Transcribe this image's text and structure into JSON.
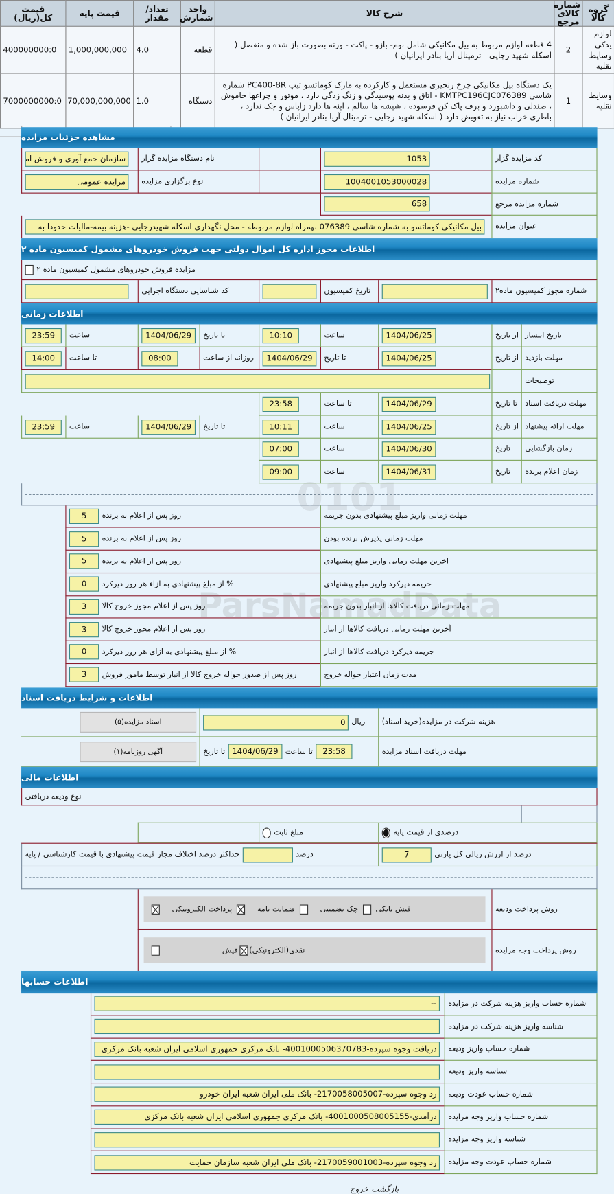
{
  "goods_table": {
    "headers": {
      "group": "گروه کالا",
      "ref_no": "شماره کالای مرجع",
      "desc": "شرح کالا",
      "unit": "واحد شمارش",
      "qty": "تعداد/مقدار",
      "base_price": "قیمت پایه",
      "total": "قیمت کل(ریال)"
    },
    "rows": [
      {
        "group": "لوازم یدکی وسایط نقلیه",
        "ref_no": "2",
        "desc": "4 قطعه لوازم مربوط به بیل مکانیکی شامل بوم- بازو - پاکت - وزنه بصورت باز شده و منفصل ( اسکله شهید رجایی - ترمینال آریا بنادر ایرانیان )",
        "unit": "قطعه",
        "qty": "4.0",
        "base_price": "1,000,000,000",
        "total": "400000000:0"
      },
      {
        "group": "وسایط نقلیه",
        "ref_no": "1",
        "desc": "یک دستگاه بیل مکانیکی چرخ زنجیری مستعمل و کارکرده به مارک کوماتسو تیپ PC400-8R شماره شاسی KMTPC196CJC076389 - اتاق و بدنه پوسیدگی و زنگ زدگی دارد ، موتور و چراغها خاموش ، صندلی و داشبورد و برف پاک کن فرسوده ، شیشه ها سالم ، اینه ها دارد زاپاس و جک ندارد ، باطری خراب نیاز به تعویض دارد ( اسکله شهید رجایی - ترمینال آریا بنادر ایرانیان )",
        "unit": "دستگاه",
        "qty": "1.0",
        "base_price": "70,000,000,000",
        "total": "7000000000:0"
      }
    ]
  },
  "details": {
    "title": "مشاهده جزئیات مزایده",
    "auctioneer_code_label": "کد مزایده گزار",
    "auctioneer_code": "1053",
    "org_name_label": "نام دستگاه مزایده گزار",
    "org_name": "سازمان جمع آوری و فروش اموال تملیکی",
    "auction_no_label": "شماره مزایده",
    "auction_no": "1004001053000028",
    "type_label": "نوع برگزاری مزایده",
    "type": "مزایده عمومی",
    "ref_no_label": "شماره مزایده مرجع",
    "ref_no": "658",
    "subject_label": "عنوان مزایده",
    "subject": "بیل مکانیکی کوماتسو به شماره شاسی 076389 بهمراه لوازم مربوطه - محل نگهداری اسکله شهیدرجایی -هزینه بیمه-مالیات حدودا به"
  },
  "permit": {
    "title": "اطلاعات مجوز اداره کل اموال دولتی جهت فروش خودروهای مشمول کمیسیون ماده ۲",
    "checkbox_label": "مزایده فروش خودروهای مشمول کمیسیون ماده ۲",
    "checked": false,
    "permit_no_label": "شماره مجوز کمیسیون ماده۲",
    "permit_no": "",
    "date_label": "تاریخ کمیسیون",
    "date": "",
    "exec_id_label": "کد شناسایی دستگاه اجرایی",
    "exec_id": ""
  },
  "timing": {
    "title": "اطلاعات زمانی",
    "publish": {
      "label": "تاریخ انتشار",
      "from_label": "از تاریخ",
      "from": "1404/06/25",
      "time1_label": "ساعت",
      "time1": "10:10",
      "to_label": "تا تاریخ",
      "to": "1404/06/29",
      "time2_label": "ساعت",
      "time2": "23:59"
    },
    "visit": {
      "label": "مهلت بازدید",
      "from_label": "از تاریخ",
      "from": "1404/06/25",
      "to_label": "تا تاریخ",
      "to": "1404/06/29",
      "daily_label": "روزانه از ساعت",
      "daily_from": "08:00",
      "until_label": "تا ساعت",
      "daily_to": "14:00"
    },
    "notes": {
      "label": "توضیحات",
      "value": ""
    },
    "docs": {
      "label": "مهلت دریافت اسناد",
      "to_label": "تا تاریخ",
      "to": "1404/06/29",
      "time_label": "تا ساعت",
      "time": "23:58"
    },
    "offer": {
      "label": "مهلت ارائه پیشنهاد",
      "from_label": "از تاریخ",
      "from": "1404/06/25",
      "time1_label": "ساعت",
      "time1": "10:11",
      "to_label": "تا تاریخ",
      "to": "1404/06/29",
      "time2_label": "ساعت",
      "time2": "23:59"
    },
    "opening": {
      "label": "زمان بازگشایی",
      "date_label": "تاریخ",
      "date": "1404/06/30",
      "time_label": "ساعت",
      "time": "07:00"
    },
    "winner": {
      "label": "زمان اعلام برنده",
      "date_label": "تاریخ",
      "date": "1404/06/31",
      "time_label": "ساعت",
      "time": "09:00"
    }
  },
  "deadlines": [
    {
      "label": "مهلت زمانی واریز مبلغ پیشنهادی بدون جریمه",
      "value": "5",
      "suffix": "روز پس از اعلام به برنده"
    },
    {
      "label": "مهلت زمانی پذیرش برنده بودن",
      "value": "5",
      "suffix": "روز پس از اعلام به برنده"
    },
    {
      "label": "اخرین مهلت زمانی واریز مبلغ پیشنهادی",
      "value": "5",
      "suffix": "روز پس از اعلام به برنده"
    },
    {
      "label": "جریمه دیرکرد واریز مبلغ پیشنهادی",
      "value": "0",
      "suffix": "% از مبلغ پیشنهادی به ازاء هر روز دیرکرد"
    },
    {
      "label": "مهلت زمانی دریافت کالاها از انبار بدون جریمه",
      "value": "3",
      "suffix": "روز پس از اعلام مجوز خروج کالا"
    },
    {
      "label": "آخرین مهلت زمانی دریافت کالاها از انبار",
      "value": "3",
      "suffix": "روز پس از اعلام مجوز خروج کالا"
    },
    {
      "label": "جریمه دیرکرد دریافت کالاها از انبار",
      "value": "0",
      "suffix": "% از مبلغ پیشنهادی به ازای هر روز دیرکرد"
    },
    {
      "label": "مدت زمان اعتبار حواله خروج",
      "value": "3",
      "suffix": "روز پس از صدور حواله خروج کالا از انبار توسط مامور فروش"
    }
  ],
  "documents": {
    "title": "اطلاعات و شرایط دریافت اسناد",
    "fee_label": "هزینه شرکت در مزایده(خرید اسناد)",
    "fee": "0",
    "fee_unit": "ریال",
    "docs_button": "اسناد مزایده(۵)",
    "deadline_label": "مهلت دریافت اسناد مزایده",
    "to_label": "تا تاریخ",
    "to": "1404/06/29",
    "time_label": "تا ساعت",
    "time": "23:58",
    "newspaper_button": "آگهی روزنامه(۱)"
  },
  "financial": {
    "title": "اطلاعات مالی",
    "deposit_type_label": "نوع ودیعه دریافتی",
    "radio_percent": "درصدی از قیمت پایه",
    "radio_fixed": "مبلغ ثابت",
    "selected": "percent",
    "percent_value": "7",
    "percent_suffix": "درصد از ارزش ریالی کل پارتی",
    "max_diff_label": "حداکثر درصد اختلاف مجاز قیمت پیشنهادی با قیمت کارشناسی / پایه",
    "max_diff": "",
    "max_diff_unit": "درصد",
    "deposit_method_label": "روش پرداخت ودیعه",
    "deposit_methods": [
      {
        "label": "پرداخت الکترونیکی",
        "checked": true
      },
      {
        "label": "ضمانت نامه",
        "checked": true
      },
      {
        "label": "چک تضمینی",
        "checked": false
      },
      {
        "label": "فیش بانکی",
        "checked": false
      }
    ],
    "payment_method_label": "روش پرداخت وجه مزایده",
    "payment_methods": [
      {
        "label": "فیش",
        "checked": false
      },
      {
        "label": "نقدی(الکترونیکی)",
        "checked": true
      }
    ]
  },
  "accounts": {
    "title": "اطلاعات حسابها",
    "rows": [
      {
        "label": "شماره حساب واریز هزینه شرکت در مزایده",
        "value": "--"
      },
      {
        "label": "شناسه واریز هزینه شرکت در مزایده",
        "value": ""
      },
      {
        "label": "شماره حساب واریز ودیعه",
        "value": "دریافت وجوه سپرده-4001000506370783- بانک مرکزی جمهوری اسلامی ایران شعبه بانک مرکزی"
      },
      {
        "label": "شناسه واریز ودیعه",
        "value": ""
      },
      {
        "label": "شماره حساب عودت ودیعه",
        "value": "رد وجوه سپرده-2170058005007- بانک ملی ایران شعبه ایران خودرو"
      },
      {
        "label": "شماره حساب واریز وجه مزایده",
        "value": "درآمدی-4001000508005155- بانک مرکزی جمهوری اسلامی ایران شعبه بانک مرکزی"
      },
      {
        "label": "شناسه واریز وجه مزایده",
        "value": ""
      },
      {
        "label": "شماره حساب عودت وجه مزایده",
        "value": "رد وجوه سپرده-2170059001003- بانک ملی ایران شعبه سازمان حمایت"
      }
    ]
  },
  "footer": {
    "back": "بازگشت",
    "exit": "خروج"
  },
  "watermark": {
    "text": "ParsNamadData",
    "digits": "0101"
  },
  "colors": {
    "header_bar": "#1a86c4",
    "input_bg": "#f6f2a6",
    "page_bg": "#e8f3fb",
    "border_red": "#8b1a2b",
    "border_green": "#7ea55c"
  }
}
